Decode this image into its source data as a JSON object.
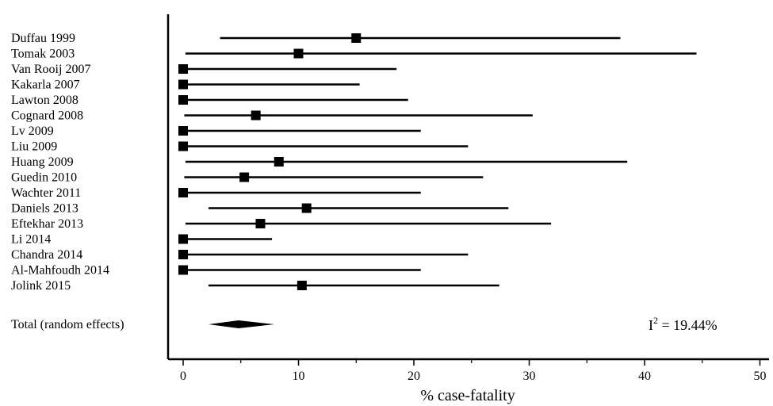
{
  "chart_data": {
    "type": "forest",
    "xlabel": "% case-fatality",
    "xlim": [
      -1,
      51
    ],
    "xticks": [
      0,
      10,
      20,
      30,
      40,
      50
    ],
    "minor_xticks": [
      5,
      15,
      25,
      35,
      45
    ],
    "studies": [
      {
        "label": "Duffau 1999",
        "estimate": 15.0,
        "lower": 3.2,
        "upper": 37.9
      },
      {
        "label": "Tomak 2003",
        "estimate": 10.0,
        "lower": 0.2,
        "upper": 44.5
      },
      {
        "label": "Van Rooij 2007",
        "estimate": 0.0,
        "lower": 0.0,
        "upper": 18.5
      },
      {
        "label": "Kakarla 2007",
        "estimate": 0.0,
        "lower": 0.0,
        "upper": 15.3
      },
      {
        "label": "Lawton 2008",
        "estimate": 0.0,
        "lower": 0.0,
        "upper": 19.5
      },
      {
        "label": "Cognard 2008",
        "estimate": 6.3,
        "lower": 0.1,
        "upper": 30.3
      },
      {
        "label": "Lv 2009",
        "estimate": 0.0,
        "lower": 0.0,
        "upper": 20.6
      },
      {
        "label": "Liu 2009",
        "estimate": 0.0,
        "lower": 0.0,
        "upper": 24.7
      },
      {
        "label": "Huang 2009",
        "estimate": 8.3,
        "lower": 0.2,
        "upper": 38.5
      },
      {
        "label": "Guedin 2010",
        "estimate": 5.3,
        "lower": 0.1,
        "upper": 26.0
      },
      {
        "label": "Wachter 2011",
        "estimate": 0.0,
        "lower": 0.0,
        "upper": 20.6
      },
      {
        "label": "Daniels 2013",
        "estimate": 10.7,
        "lower": 2.2,
        "upper": 28.2
      },
      {
        "label": "Eftekhar 2013",
        "estimate": 6.7,
        "lower": 0.2,
        "upper": 31.9
      },
      {
        "label": "Li 2014",
        "estimate": 0.0,
        "lower": 0.0,
        "upper": 7.7
      },
      {
        "label": "Chandra 2014",
        "estimate": 0.0,
        "lower": 0.0,
        "upper": 24.7
      },
      {
        "label": "Al-Mahfoudh 2014",
        "estimate": 0.0,
        "lower": 0.0,
        "upper": 20.6
      },
      {
        "label": "Jolink 2015",
        "estimate": 10.3,
        "lower": 2.2,
        "upper": 27.4
      }
    ],
    "total": {
      "label": "Total (random effects)",
      "estimate": 4.8,
      "lower": 2.2,
      "upper": 7.9
    },
    "heterogeneity": {
      "prefix": "I",
      "superscript": "2",
      "text": " = 19.44%"
    },
    "grid": false,
    "colors": {
      "line": "#000000",
      "marker": "#000000",
      "background": "#ffffff"
    }
  }
}
